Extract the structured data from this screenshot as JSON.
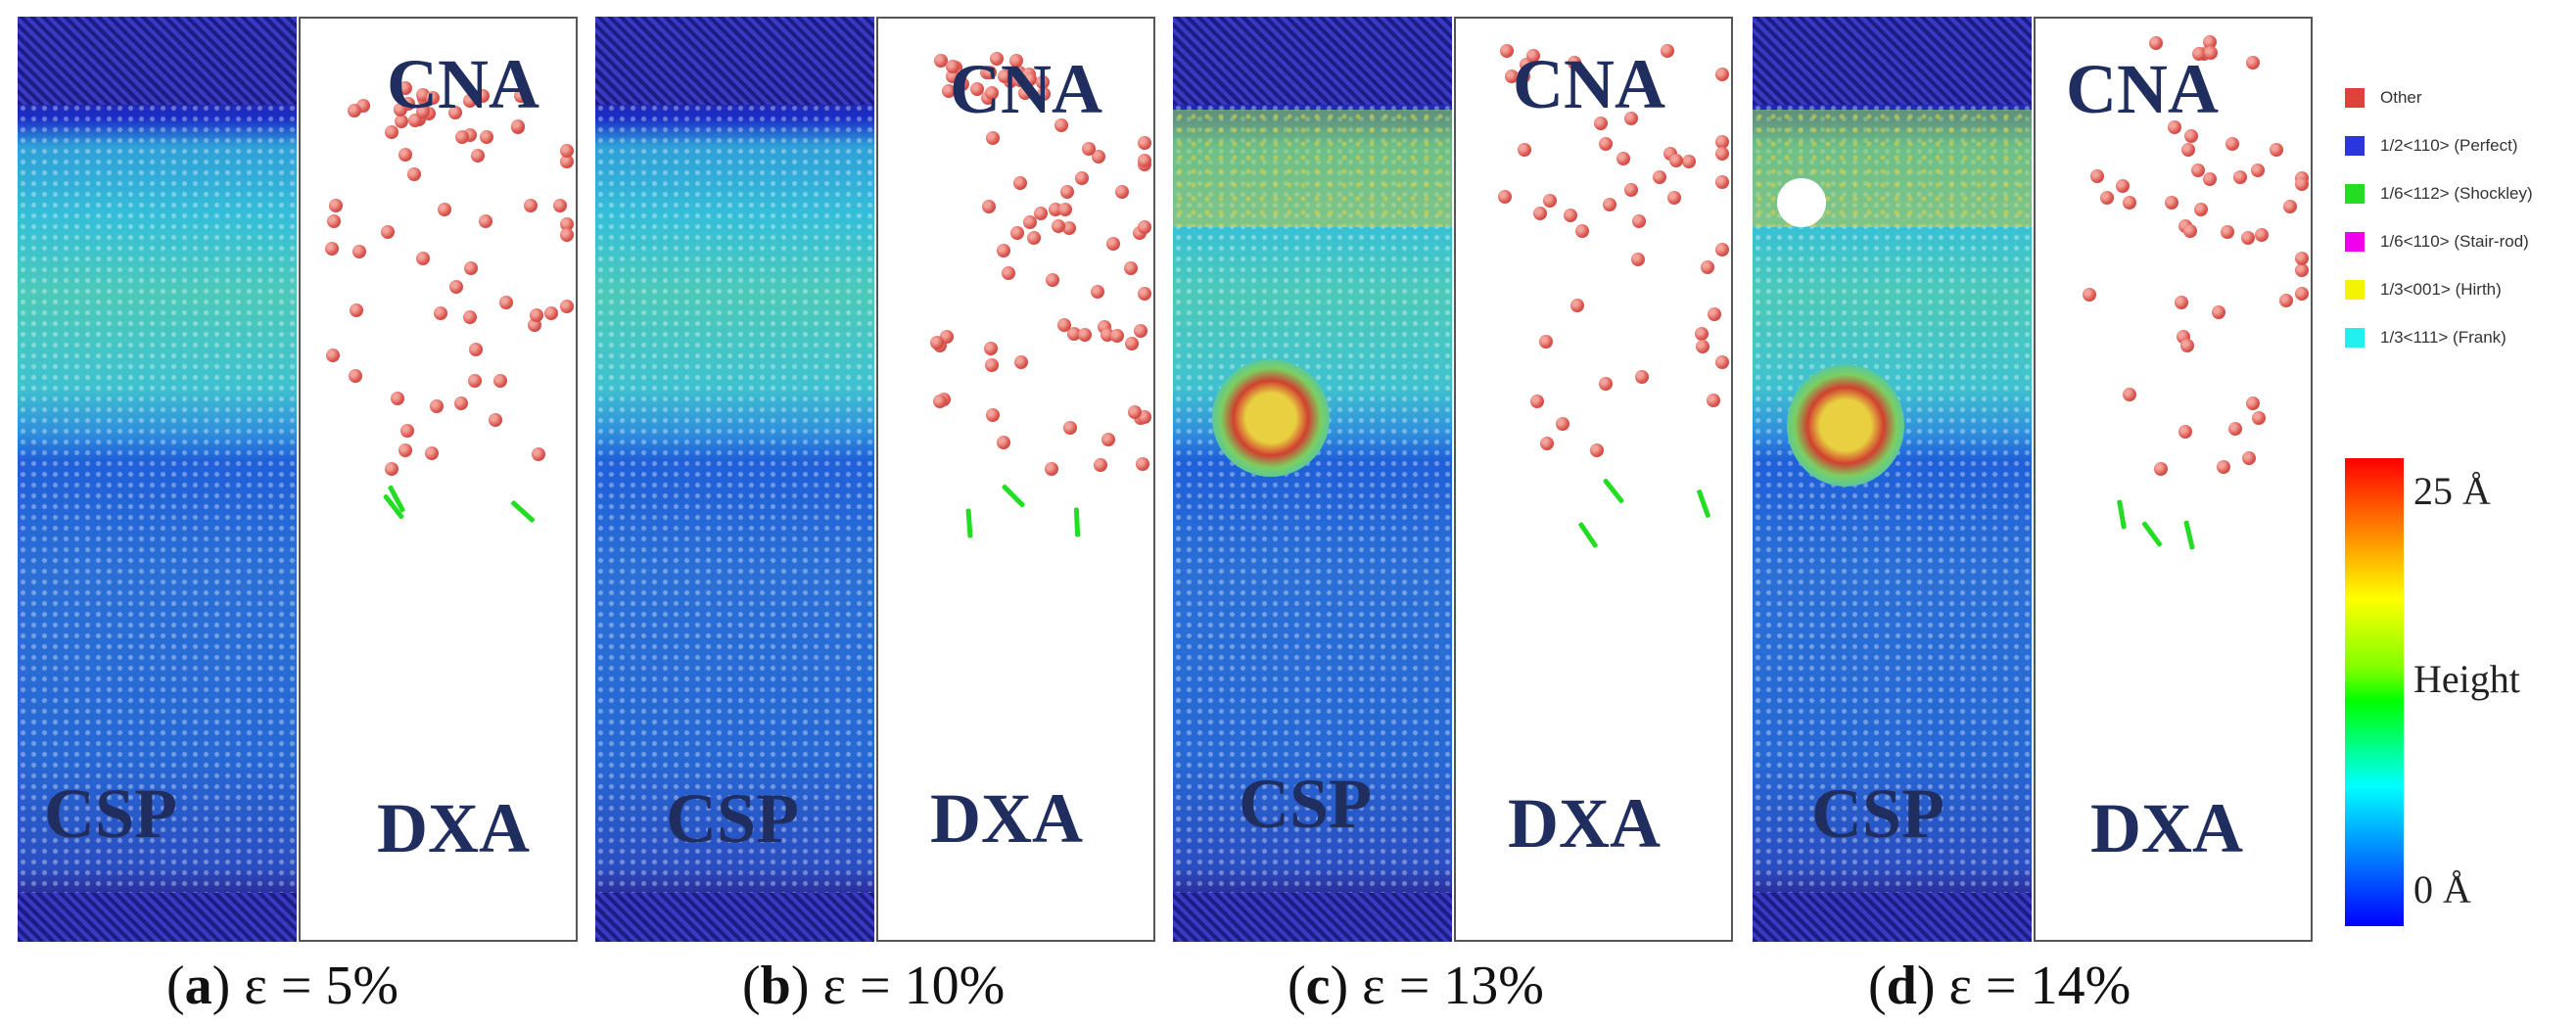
{
  "panels": [
    {
      "id": "a",
      "letter": "a",
      "strain": "ε = 5%",
      "left_label": "CSP",
      "right_label": "DXA",
      "top_label": "CNA"
    },
    {
      "id": "b",
      "letter": "b",
      "strain": "ε = 10%",
      "left_label": "CSP",
      "right_label": "DXA",
      "top_label": "CNA"
    },
    {
      "id": "c",
      "letter": "c",
      "strain": "ε = 13%",
      "left_label": "CSP",
      "right_label": "DXA",
      "top_label": "CNA"
    },
    {
      "id": "d",
      "letter": "d",
      "strain": "ε = 14%",
      "left_label": "CSP",
      "right_label": "DXA",
      "top_label": "CNA"
    }
  ],
  "legend": {
    "items": [
      {
        "label": "Other",
        "color": "#e0413a"
      },
      {
        "label": "1/2<110> (Perfect)",
        "color": "#2b36e0"
      },
      {
        "label": "1/6<112> (Shockley)",
        "color": "#22dd22"
      },
      {
        "label": "1/6<110> (Stair-rod)",
        "color": "#ee00ee"
      },
      {
        "label": "1/3<001> (Hirth)",
        "color": "#f4f400"
      },
      {
        "label": "1/3<111> (Frank)",
        "color": "#22f0f0"
      }
    ]
  },
  "colorbar": {
    "max_label": "25 Å",
    "mid_label": "Height",
    "min_label": "0 Å"
  }
}
